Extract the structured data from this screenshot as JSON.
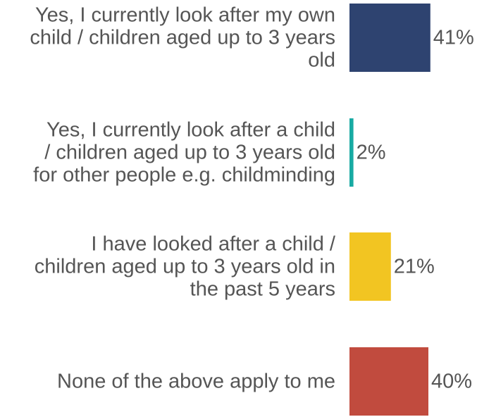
{
  "chart_data": {
    "type": "bar",
    "orientation": "horizontal",
    "categories": [
      "Yes, I currently look after my own child / children aged up to 3 years old",
      "Yes, I currently look after a child / children aged up to 3 years old for other people e.g. childminding",
      "I have looked after a child / children aged up to 3 years old in the past 5 years",
      "None of the above apply to me"
    ],
    "category_lines": [
      [
        "Yes, I currently look after my own",
        "child / children aged up to 3 years",
        "old"
      ],
      [
        "Yes, I currently look after a child",
        "/ children aged up to 3 years old",
        "for other people e.g. childminding"
      ],
      [
        "I have looked after a child /",
        "children aged up to 3 years old in",
        "the past 5 years"
      ],
      [
        "None of the above apply to me"
      ]
    ],
    "values": [
      41,
      2,
      21,
      40
    ],
    "value_labels": [
      "41%",
      "2%",
      "21%",
      "40%"
    ],
    "colors": [
      "#2e4370",
      "#18aaa3",
      "#f2c522",
      "#c14b3e"
    ],
    "xlim": [
      0,
      41
    ],
    "grid": false,
    "legend": "none"
  }
}
